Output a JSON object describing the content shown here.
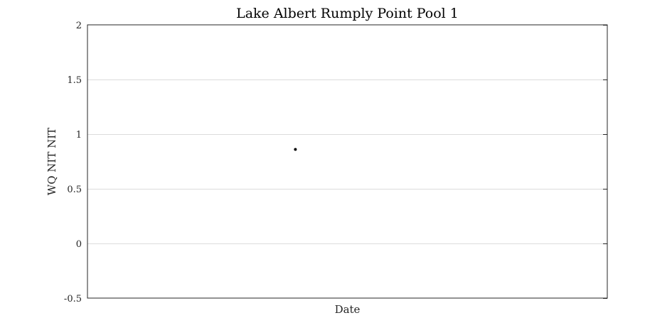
{
  "chart_data": {
    "type": "scatter",
    "title": "Lake Albert Rumply Point Pool 1",
    "xlabel": "Date",
    "ylabel": "WQ NIT NIT",
    "ylim": [
      -0.5,
      2
    ],
    "yticks": [
      -0.5,
      0,
      0.5,
      1,
      1.5,
      2
    ],
    "ytick_labels": [
      "-0.5",
      "0",
      "0.5",
      "1",
      "1.5",
      "2"
    ],
    "xticks": [],
    "grid": "horizontal",
    "legend": "none",
    "series": [
      {
        "points": [
          {
            "x_fraction": 0.4,
            "y": 0.86
          }
        ],
        "marker": "dot",
        "color": "#000000"
      }
    ]
  }
}
